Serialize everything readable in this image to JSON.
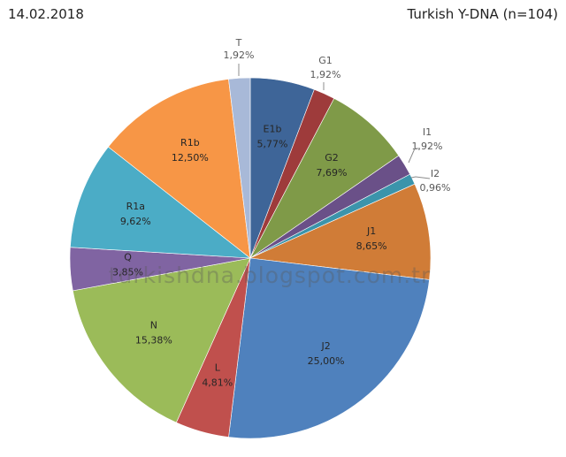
{
  "header": {
    "date": "14.02.2018",
    "title": "Turkish Y-DNA (n=104)"
  },
  "watermark": "turkishdna.blogspot.com.tr",
  "chart_data": {
    "type": "pie",
    "title": "Turkish Y-DNA (n=104)",
    "subtitle": "14.02.2018",
    "start_angle": "12 o'clock, clockwise",
    "categories": [
      "E1b",
      "G1",
      "G2",
      "I1",
      "I2",
      "J1",
      "J2",
      "L",
      "N",
      "Q",
      "R1a",
      "R1b",
      "T"
    ],
    "values": [
      5.77,
      1.92,
      7.69,
      1.92,
      0.96,
      8.65,
      25.0,
      4.81,
      15.38,
      3.85,
      9.62,
      12.5,
      1.92
    ],
    "labels": [
      "5,77%",
      "1,92%",
      "7,69%",
      "1,92%",
      "0,96%",
      "8,65%",
      "25,00%",
      "4,81%",
      "15,38%",
      "3,85%",
      "9,62%",
      "12,50%",
      "1,92%"
    ],
    "colors": [
      "#3E6598",
      "#9E3B3B",
      "#7F9A48",
      "#6A5088",
      "#3B94AB",
      "#D07C37",
      "#4F81BD",
      "#C0504D",
      "#9BBB59",
      "#8064A2",
      "#4BACC6",
      "#F79646",
      "#A8B9D8"
    ],
    "unit": "%",
    "legend": "none (data labels)"
  }
}
